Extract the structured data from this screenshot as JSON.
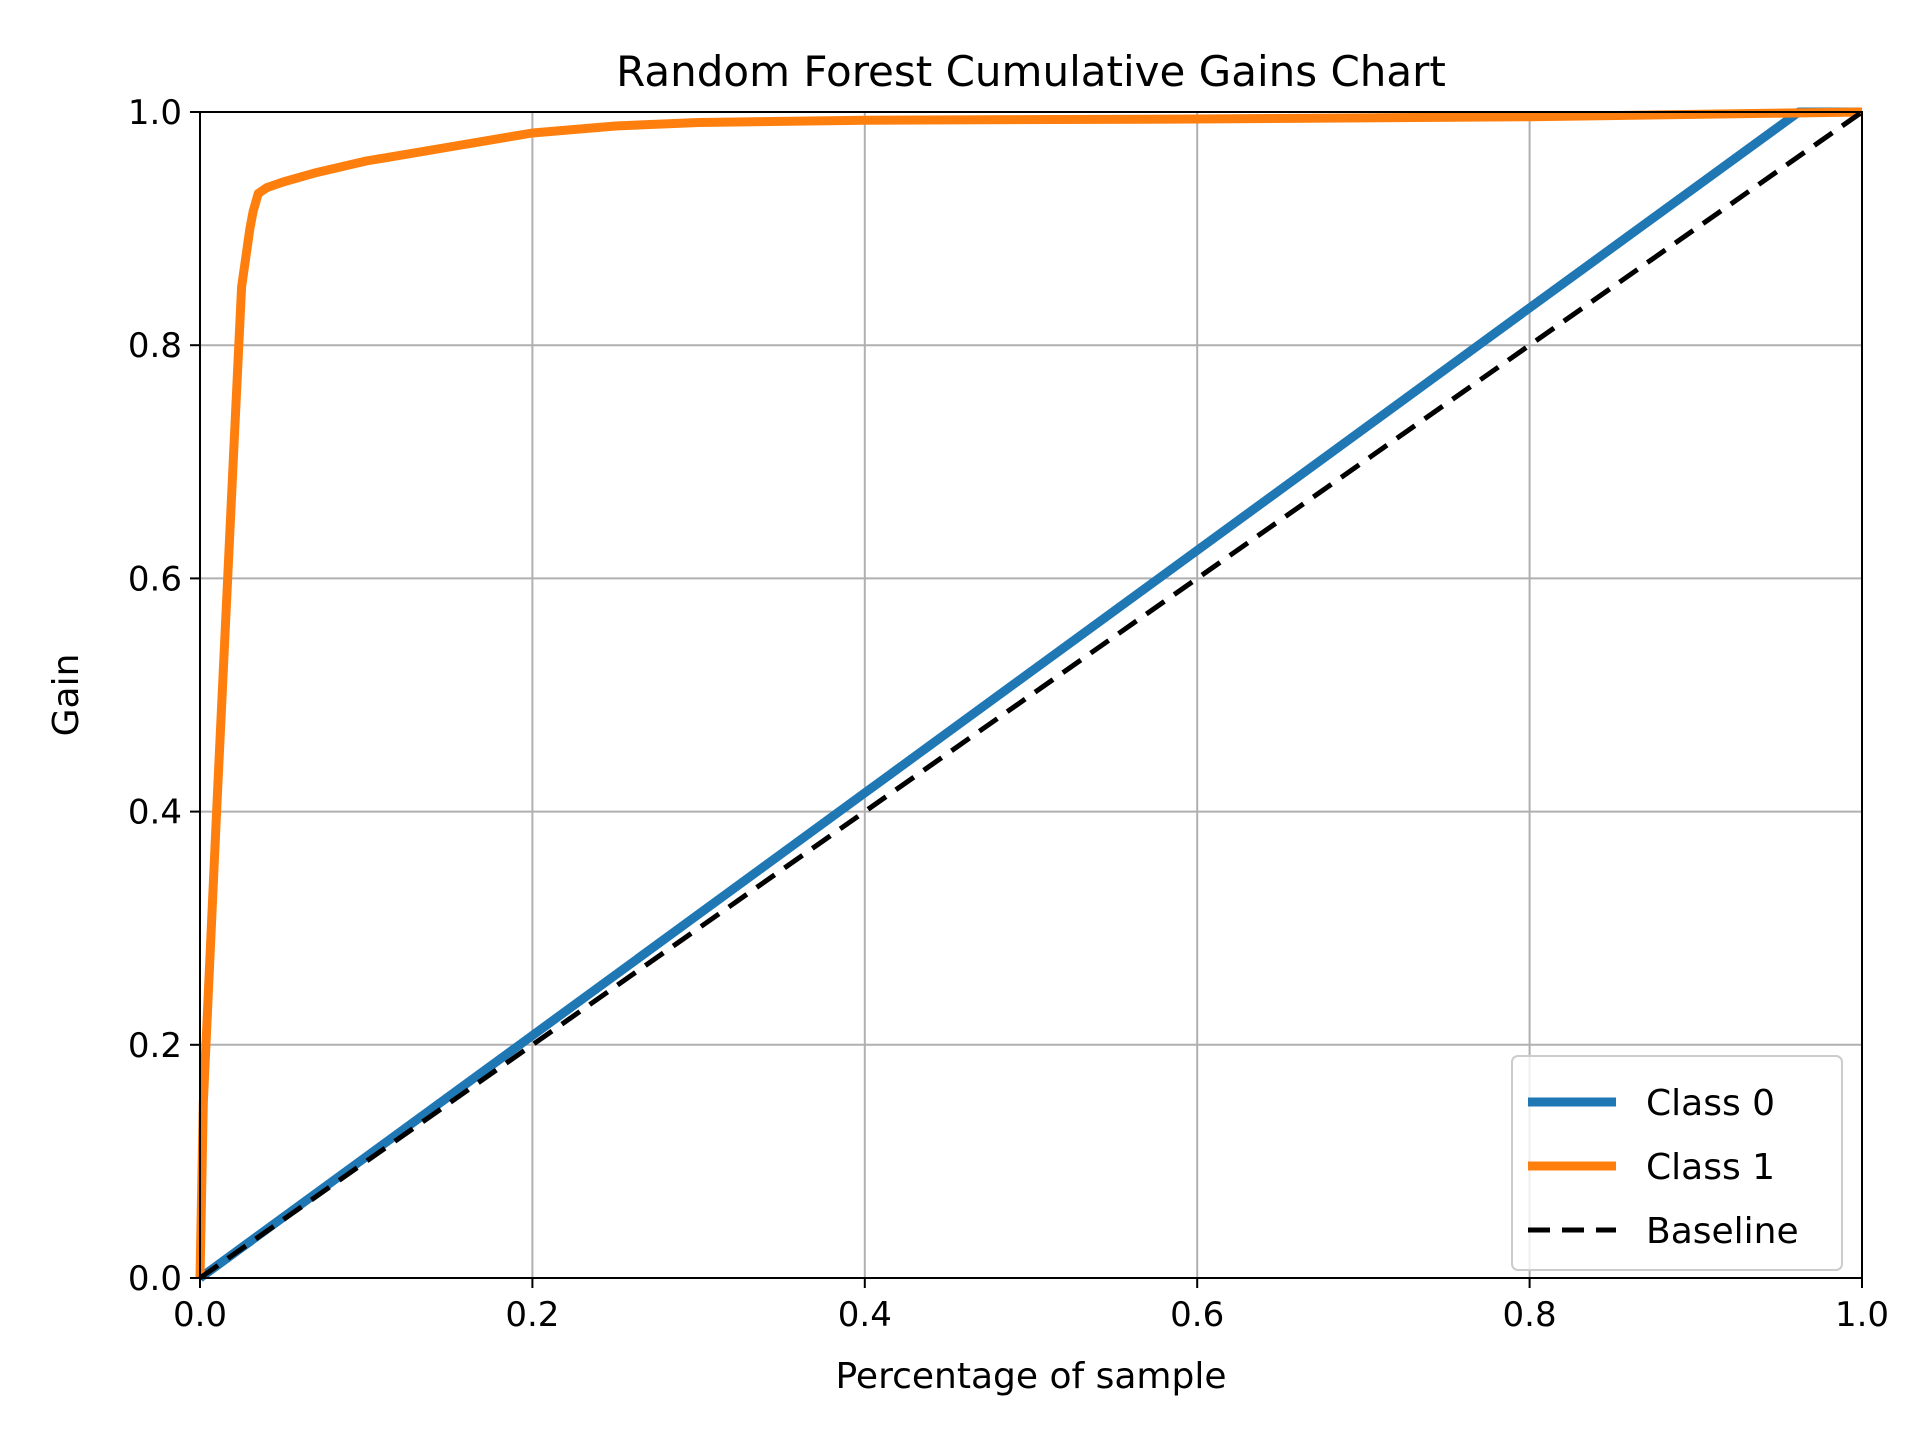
{
  "chart_data": {
    "type": "line",
    "title": "Random Forest Cumulative Gains Chart",
    "xlabel": "Percentage of sample",
    "ylabel": "Gain",
    "xlim": [
      0.0,
      1.0
    ],
    "ylim": [
      0.0,
      1.0
    ],
    "xticks": [
      "0.0",
      "0.2",
      "0.4",
      "0.6",
      "0.8",
      "1.0"
    ],
    "yticks": [
      "0.0",
      "0.2",
      "0.4",
      "0.6",
      "0.8",
      "1.0"
    ],
    "grid": true,
    "legend_position": "lower-right",
    "series": [
      {
        "name": "Class 0",
        "color": "#1f77b4",
        "style": "solid",
        "x": [
          0.0,
          0.2,
          0.4,
          0.6,
          0.8,
          0.962,
          1.0
        ],
        "y": [
          0.0,
          0.208,
          0.416,
          0.624,
          0.832,
          1.0,
          1.0
        ]
      },
      {
        "name": "Class 1",
        "color": "#ff7f0e",
        "style": "solid",
        "x": [
          0.0,
          0.002,
          0.01,
          0.02,
          0.025,
          0.03,
          0.032,
          0.035,
          0.04,
          0.05,
          0.07,
          0.1,
          0.15,
          0.2,
          0.25,
          0.3,
          0.4,
          0.6,
          0.8,
          1.0
        ],
        "y": [
          0.0,
          0.15,
          0.4,
          0.7,
          0.85,
          0.9,
          0.915,
          0.93,
          0.935,
          0.94,
          0.948,
          0.958,
          0.97,
          0.982,
          0.988,
          0.991,
          0.993,
          0.994,
          0.996,
          1.0
        ]
      },
      {
        "name": "Baseline",
        "color": "#000000",
        "style": "dashed",
        "x": [
          0.0,
          1.0
        ],
        "y": [
          0.0,
          1.0
        ]
      }
    ]
  }
}
